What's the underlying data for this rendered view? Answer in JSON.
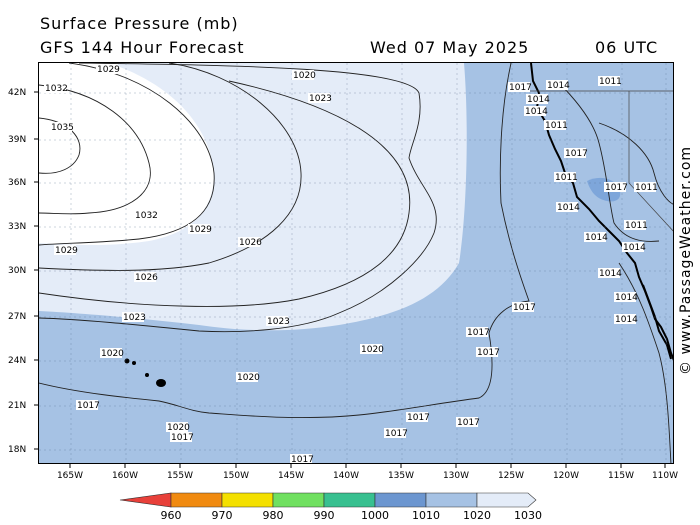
{
  "header": {
    "title": "Surface Pressure (mb)",
    "subtitle": "GFS 144 Hour Forecast",
    "date": "Wed 07 May 2025",
    "time": "06 UTC"
  },
  "watermark": "© www.PassageWeather.com",
  "axes": {
    "lat_labels": [
      "42N",
      "39N",
      "36N",
      "33N",
      "30N",
      "27N",
      "24N",
      "21N",
      "18N"
    ],
    "lon_labels": [
      "165W",
      "160W",
      "155W",
      "150W",
      "145W",
      "140W",
      "135W",
      "130W",
      "125W",
      "120W",
      "115W",
      "110W"
    ]
  },
  "isobar_labels": [
    {
      "text": "1029"
    },
    {
      "text": "1020"
    },
    {
      "text": "1023"
    },
    {
      "text": "1032"
    },
    {
      "text": "1035"
    },
    {
      "text": "1032"
    },
    {
      "text": "1029"
    },
    {
      "text": "1026"
    },
    {
      "text": "1029"
    },
    {
      "text": "1026"
    },
    {
      "text": "1023"
    },
    {
      "text": "1023"
    },
    {
      "text": "1020"
    },
    {
      "text": "1020"
    },
    {
      "text": "1020"
    },
    {
      "text": "1017"
    },
    {
      "text": "1020"
    },
    {
      "text": "1017"
    },
    {
      "text": "1017"
    },
    {
      "text": "1017"
    },
    {
      "text": "1017"
    },
    {
      "text": "1017"
    },
    {
      "text": "1017"
    },
    {
      "text": "1017"
    },
    {
      "text": "1017"
    },
    {
      "text": "1017"
    },
    {
      "text": "1014"
    },
    {
      "text": "1011"
    },
    {
      "text": "1014"
    },
    {
      "text": "1014"
    },
    {
      "text": "1011"
    },
    {
      "text": "1017"
    },
    {
      "text": "1011"
    },
    {
      "text": "1014"
    },
    {
      "text": "1017"
    },
    {
      "text": "1011"
    },
    {
      "text": "1014"
    },
    {
      "text": "1014"
    },
    {
      "text": "1011"
    },
    {
      "text": "1014"
    },
    {
      "text": "1014"
    },
    {
      "text": "1014"
    }
  ],
  "colorbar": {
    "labels": [
      "960",
      "970",
      "980",
      "990",
      "1000",
      "1010",
      "1020",
      "1030"
    ],
    "colors": [
      "#e8403a",
      "#f08a10",
      "#f4e000",
      "#70e060",
      "#38c090",
      "#6c96d0",
      "#a6c2e4",
      "#e4ecf8"
    ]
  }
}
